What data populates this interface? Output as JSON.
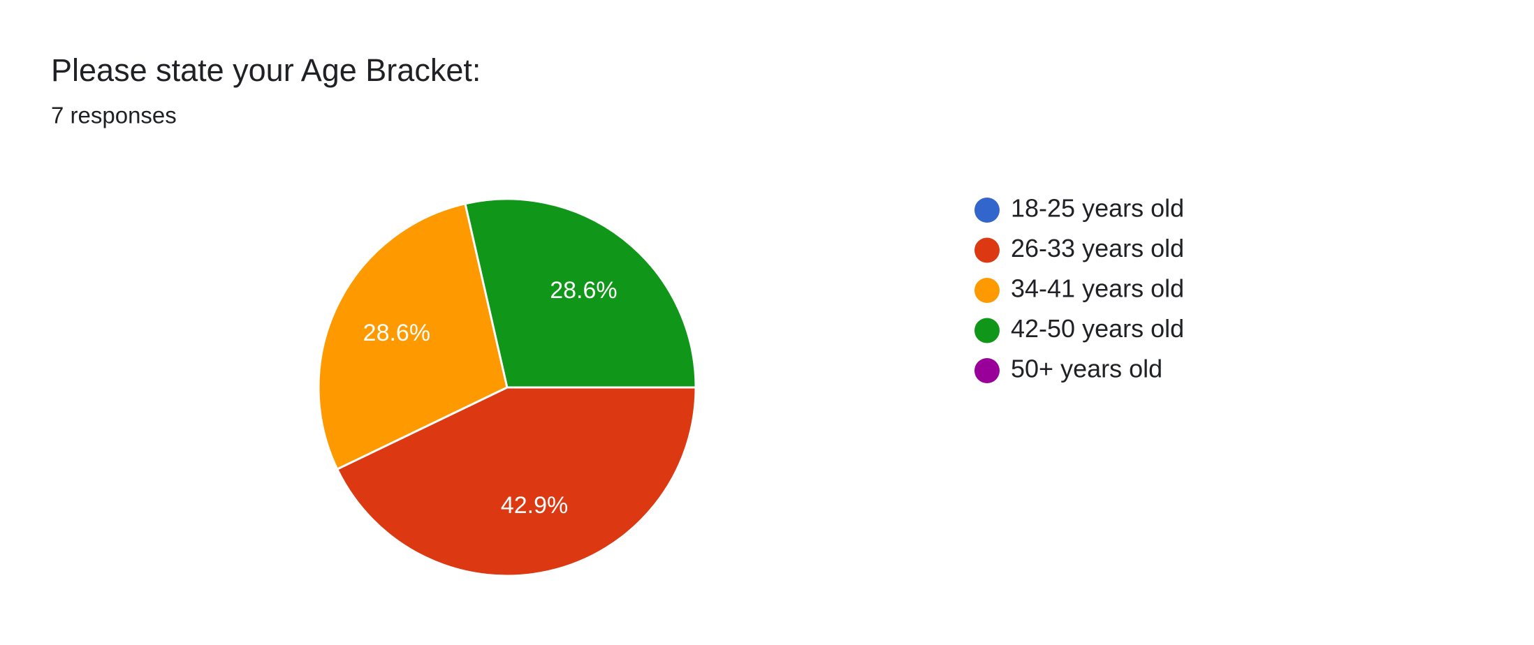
{
  "chart_data": {
    "type": "pie",
    "title": "Please state your Age Bracket:",
    "subtitle": "7 responses",
    "categories": [
      "18-25 years old",
      "26-33 years old",
      "34-41 years old",
      "42-50 years old",
      "50+ years old"
    ],
    "values": [
      0,
      42.9,
      28.6,
      28.6,
      0
    ],
    "value_labels": [
      null,
      "42.9%",
      "28.6%",
      "28.6%",
      null
    ],
    "colors": [
      "#3366cc",
      "#dc3912",
      "#ff9900",
      "#109618",
      "#990099"
    ],
    "legend": "right"
  }
}
